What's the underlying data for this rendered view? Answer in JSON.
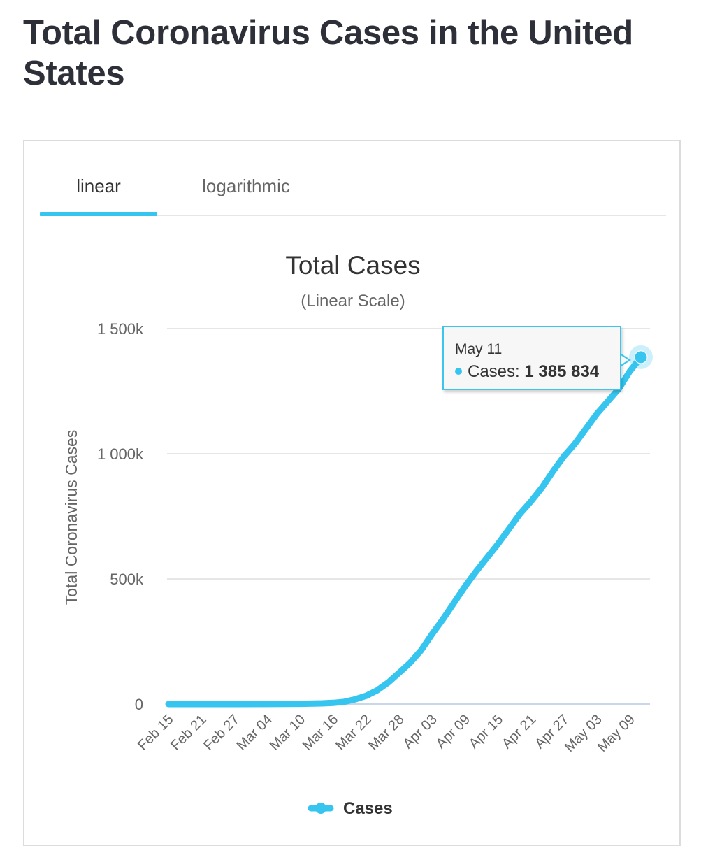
{
  "page": {
    "title": "Total Coronavirus Cases in the United States"
  },
  "tabs": [
    {
      "label": "linear",
      "active": true
    },
    {
      "label": "logarithmic",
      "active": false
    }
  ],
  "colors": {
    "series": "#35c5ef",
    "grid": "#e6e6e6",
    "text": "#333333",
    "axis_text": "#666666"
  },
  "tooltip": {
    "date": "May 11",
    "series_label": "Cases: ",
    "value": "1 385 834"
  },
  "chart_data": {
    "type": "line",
    "title": "Total Cases",
    "subtitle": "(Linear Scale)",
    "ylabel": "Total Coronavirus Cases",
    "xlabel": "",
    "ylim": [
      0,
      1500000
    ],
    "yticks": [
      {
        "value": 0,
        "label": "0"
      },
      {
        "value": 500000,
        "label": "500k"
      },
      {
        "value": 1000000,
        "label": "1 000k"
      },
      {
        "value": 1500000,
        "label": "1 500k"
      }
    ],
    "xtick_labels": [
      "Feb 15",
      "Feb 21",
      "Feb 27",
      "Mar 04",
      "Mar 10",
      "Mar 16",
      "Mar 22",
      "Mar 28",
      "Apr 03",
      "Apr 09",
      "Apr 15",
      "Apr 21",
      "Apr 27",
      "May 03",
      "May 09"
    ],
    "grid": true,
    "legend": {
      "position": "bottom-center",
      "entries": [
        "Cases"
      ]
    },
    "series": [
      {
        "name": "Cases",
        "x": [
          "Feb 15",
          "Feb 21",
          "Feb 27",
          "Mar 04",
          "Mar 10",
          "Mar 14",
          "Mar 16",
          "Mar 18",
          "Mar 20",
          "Mar 22",
          "Mar 24",
          "Mar 26",
          "Mar 28",
          "Mar 30",
          "Apr 01",
          "Apr 03",
          "Apr 05",
          "Apr 07",
          "Apr 09",
          "Apr 11",
          "Apr 13",
          "Apr 15",
          "Apr 17",
          "Apr 19",
          "Apr 21",
          "Apr 23",
          "Apr 25",
          "Apr 27",
          "Apr 29",
          "May 01",
          "May 03",
          "May 05",
          "May 07",
          "May 09",
          "May 11"
        ],
        "values": [
          15,
          15,
          60,
          150,
          1000,
          2800,
          4700,
          9000,
          19000,
          33000,
          55000,
          86000,
          125000,
          165000,
          215000,
          280000,
          340000,
          405000,
          470000,
          530000,
          585000,
          640000,
          700000,
          760000,
          810000,
          865000,
          930000,
          990000,
          1040000,
          1100000,
          1160000,
          1210000,
          1260000,
          1330000,
          1385834
        ]
      }
    ]
  }
}
